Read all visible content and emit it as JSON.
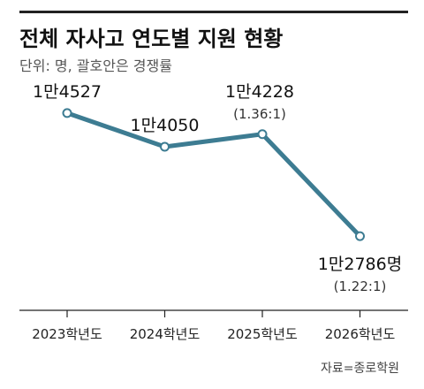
{
  "chart_data": {
    "type": "line",
    "title": "전체 자사고 연도별 지원 현황",
    "subtitle": "단위: 명, 괄호안은 경쟁률",
    "categories": [
      "2023학년도",
      "2024학년도",
      "2025학년도",
      "2026학년도"
    ],
    "series": [
      {
        "values": [
          14527,
          14050,
          14228,
          12786
        ]
      }
    ],
    "data_labels": [
      "1만4527",
      "1만4050",
      "1만4228",
      "1만2786명"
    ],
    "ratio_labels": [
      "",
      "",
      "(1.36:1)",
      "(1.22:1)"
    ],
    "ylim": [
      12000,
      15000
    ],
    "grid": false,
    "line_color": "#3d7c92",
    "source": "자료=종로학원"
  }
}
